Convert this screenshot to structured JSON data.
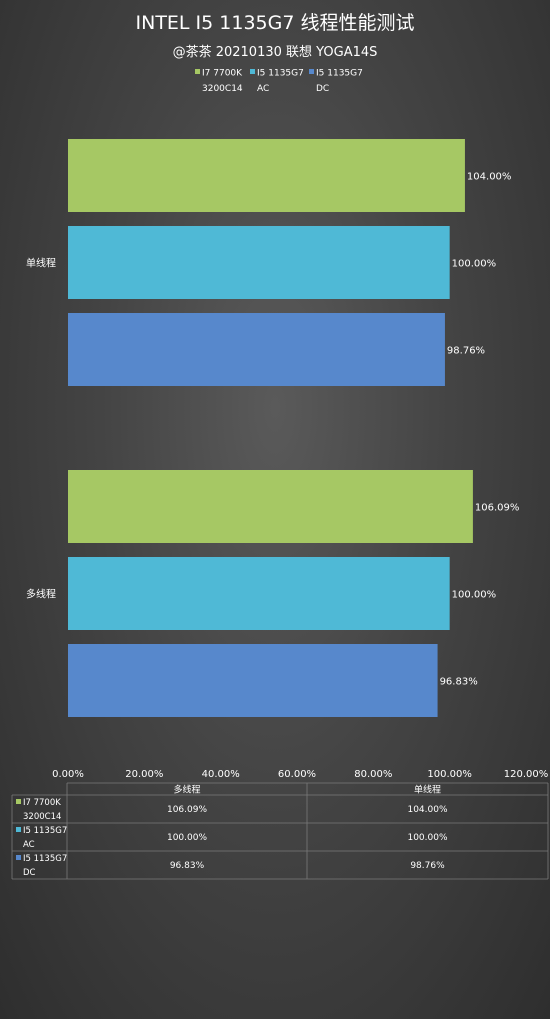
{
  "chart_data": {
    "type": "bar",
    "orientation": "horizontal",
    "title": "INTEL I5 1135G7 线程性能测试",
    "subtitle": "@茶茶 20210130 联想 YOGA14S",
    "categories": [
      "单线程",
      "多线程"
    ],
    "series": [
      {
        "name_lines": [
          "I7 7700K",
          "3200C14"
        ],
        "color": "#a6c864",
        "values": [
          104.0,
          106.09
        ],
        "labels": [
          "104.00%",
          "106.09%"
        ]
      },
      {
        "name_lines": [
          "I5 1135G7",
          "AC"
        ],
        "color": "#4fb9d6",
        "values": [
          100.0,
          100.0
        ],
        "labels": [
          "100.00%",
          "100.00%"
        ]
      },
      {
        "name_lines": [
          "I5 1135G7",
          "DC"
        ],
        "color": "#5788cc",
        "values": [
          98.76,
          96.83
        ],
        "labels": [
          "98.76%",
          "96.83%"
        ]
      }
    ],
    "xlim": [
      0,
      120
    ],
    "xticks": [
      "0.00%",
      "20.00%",
      "40.00%",
      "60.00%",
      "80.00%",
      "100.00%",
      "120.00%"
    ],
    "legend_position": "top-center",
    "data_table": {
      "columns": [
        "多线程",
        "单线程"
      ],
      "rows": [
        {
          "name_lines": [
            "I7 7700K",
            "3200C14"
          ],
          "color": "#a6c864",
          "cells": [
            "106.09%",
            "104.00%"
          ]
        },
        {
          "name_lines": [
            "I5 1135G7",
            "AC"
          ],
          "color": "#4fb9d6",
          "cells": [
            "100.00%",
            "100.00%"
          ]
        },
        {
          "name_lines": [
            "I5 1135G7",
            "DC"
          ],
          "color": "#5788cc",
          "cells": [
            "96.83%",
            "98.76%"
          ]
        }
      ]
    }
  }
}
